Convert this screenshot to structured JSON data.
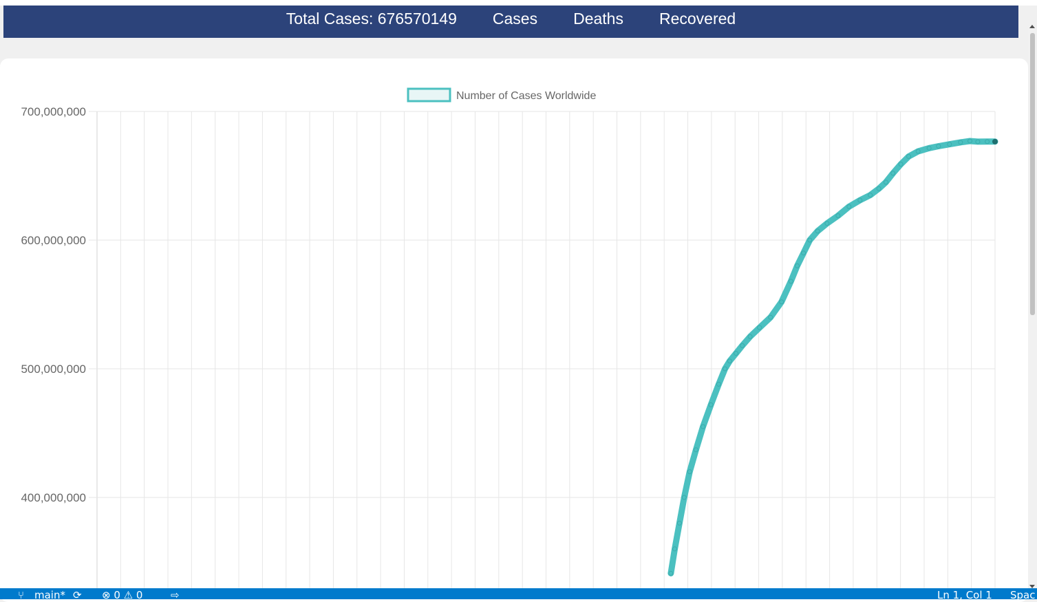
{
  "navbar": {
    "total_label": "Total Cases: 676570149",
    "links": [
      "Cases",
      "Deaths",
      "Recovered"
    ]
  },
  "chart_data": {
    "type": "line",
    "legend": "Number of Cases Worldwide",
    "color": "#4bc0c0",
    "y_ticks": [
      "700,000,000",
      "600,000,000",
      "500,000,000",
      "400,000,000"
    ],
    "ylim": [
      340000000,
      700000000
    ],
    "x_count": 1144,
    "series": [
      {
        "name": "Number of Cases Worldwide",
        "x": [
          731,
          736,
          742,
          748,
          755,
          763,
          772,
          782,
          792,
          800,
          806,
          814,
          822,
          832,
          844,
          858,
          872,
          884,
          892,
          900,
          908,
          918,
          930,
          944,
          958,
          972,
          985,
          996,
          1005,
          1014,
          1024,
          1034,
          1046,
          1060,
          1072,
          1086,
          1100,
          1112,
          1122,
          1134,
          1144
        ],
        "values": [
          341000000,
          360000000,
          380000000,
          400000000,
          420000000,
          437000000,
          455000000,
          472000000,
          488000000,
          500000000,
          506000000,
          512000000,
          518000000,
          525000000,
          532000000,
          540000000,
          552000000,
          568000000,
          580000000,
          590000000,
          600000000,
          607000000,
          613000000,
          619000000,
          626000000,
          631000000,
          635000000,
          640000000,
          645000000,
          652000000,
          659000000,
          665000000,
          669000000,
          671500000,
          673000000,
          674500000,
          676000000,
          677000000,
          676500000,
          676570149,
          676570149
        ]
      }
    ]
  },
  "statusbar": {
    "branch": "main*",
    "sync_icon": "sync-icon",
    "problems": "⊗ 0 ⚠ 0",
    "cursor": "Ln 1, Col 1",
    "spaces": "Spac"
  }
}
